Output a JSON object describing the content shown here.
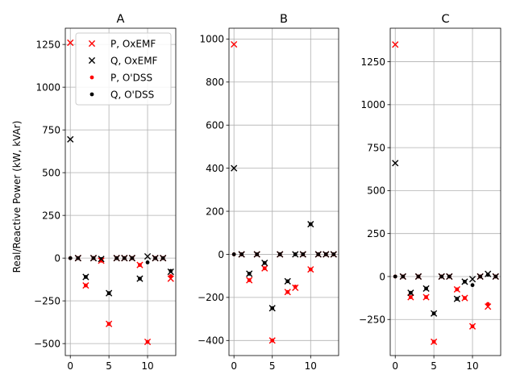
{
  "chart_data": {
    "type": "scatter",
    "ylabel": "Real/Reactive Power (kW, kVAr)",
    "legend": {
      "placement": "upper-right of panel A",
      "entries": [
        {
          "label": "P, OxEMF",
          "marker": "x",
          "color": "#ff0000"
        },
        {
          "label": "Q, OxEMF",
          "marker": "x",
          "color": "#000000"
        },
        {
          "label": "P, O'DSS",
          "marker": "dot",
          "color": "#ff0000"
        },
        {
          "label": "Q, O'DSS",
          "marker": "dot",
          "color": "#000000"
        }
      ]
    },
    "grid": true,
    "panels": [
      {
        "title": "A",
        "xlim": [
          -0.65,
          13.65
        ],
        "ylim": [
          -570,
          1345
        ],
        "xticks": [
          0,
          5,
          10
        ],
        "yticks": [
          -500,
          -250,
          0,
          250,
          500,
          750,
          1000,
          1250
        ],
        "x": [
          0,
          1,
          2,
          3,
          4,
          5,
          6,
          7,
          8,
          9,
          10,
          11,
          12,
          13
        ],
        "series": [
          {
            "name": "P, OxEMF",
            "values": [
              1260,
              0,
              -160,
              0,
              -15,
              -385,
              0,
              0,
              0,
              -40,
              -490,
              0,
              0,
              -120
            ]
          },
          {
            "name": "Q, OxEMF",
            "values": [
              695,
              0,
              -110,
              0,
              -5,
              -205,
              0,
              0,
              0,
              -120,
              10,
              0,
              0,
              -80
            ]
          },
          {
            "name": "P, O'DSS",
            "values": [
              0,
              0,
              -160,
              0,
              -15,
              -385,
              0,
              0,
              0,
              -40,
              -490,
              0,
              0,
              -105
            ]
          },
          {
            "name": "Q, O'DSS",
            "values": [
              0,
              0,
              -110,
              0,
              -5,
              -205,
              0,
              0,
              0,
              -120,
              -25,
              0,
              0,
              -75
            ]
          }
        ]
      },
      {
        "title": "B",
        "xlim": [
          -0.65,
          13.65
        ],
        "ylim": [
          -470,
          1050
        ],
        "xticks": [
          0,
          5,
          10
        ],
        "yticks": [
          -400,
          -200,
          0,
          200,
          400,
          600,
          800,
          1000
        ],
        "x": [
          0,
          1,
          2,
          3,
          4,
          5,
          6,
          7,
          8,
          9,
          10,
          11,
          12,
          13
        ],
        "series": [
          {
            "name": "P, OxEMF",
            "values": [
              975,
              0,
              -120,
              0,
              -65,
              -400,
              0,
              -175,
              -155,
              0,
              -70,
              0,
              0,
              0
            ]
          },
          {
            "name": "Q, OxEMF",
            "values": [
              400,
              0,
              -90,
              0,
              -40,
              -250,
              0,
              -125,
              0,
              0,
              140,
              0,
              0,
              0
            ]
          },
          {
            "name": "P, O'DSS",
            "values": [
              0,
              0,
              -120,
              0,
              -65,
              -400,
              0,
              -175,
              -150,
              0,
              -70,
              0,
              0,
              0
            ]
          },
          {
            "name": "Q, O'DSS",
            "values": [
              0,
              0,
              -90,
              0,
              -40,
              -250,
              0,
              -125,
              0,
              0,
              140,
              0,
              0,
              0
            ]
          }
        ]
      },
      {
        "title": "C",
        "xlim": [
          -0.65,
          13.65
        ],
        "ylim": [
          -460,
          1445
        ],
        "xticks": [
          0,
          5,
          10
        ],
        "yticks": [
          -250,
          0,
          250,
          500,
          750,
          1000,
          1250
        ],
        "x": [
          0,
          1,
          2,
          3,
          4,
          5,
          6,
          7,
          8,
          9,
          10,
          11,
          12,
          13
        ],
        "series": [
          {
            "name": "P, OxEMF",
            "values": [
              1350,
              0,
              -120,
              0,
              -120,
              -380,
              0,
              0,
              -75,
              -125,
              -290,
              0,
              -175,
              0
            ]
          },
          {
            "name": "Q, OxEMF",
            "values": [
              660,
              0,
              -95,
              0,
              -70,
              -215,
              0,
              0,
              -130,
              -30,
              -15,
              0,
              15,
              0
            ]
          },
          {
            "name": "P, O'DSS",
            "values": [
              0,
              0,
              -120,
              0,
              -120,
              -380,
              0,
              0,
              -75,
              -125,
              -290,
              0,
              -160,
              0
            ]
          },
          {
            "name": "Q, O'DSS",
            "values": [
              0,
              0,
              -95,
              0,
              -70,
              -215,
              0,
              0,
              -130,
              -30,
              -50,
              0,
              10,
              0
            ]
          }
        ]
      }
    ]
  }
}
